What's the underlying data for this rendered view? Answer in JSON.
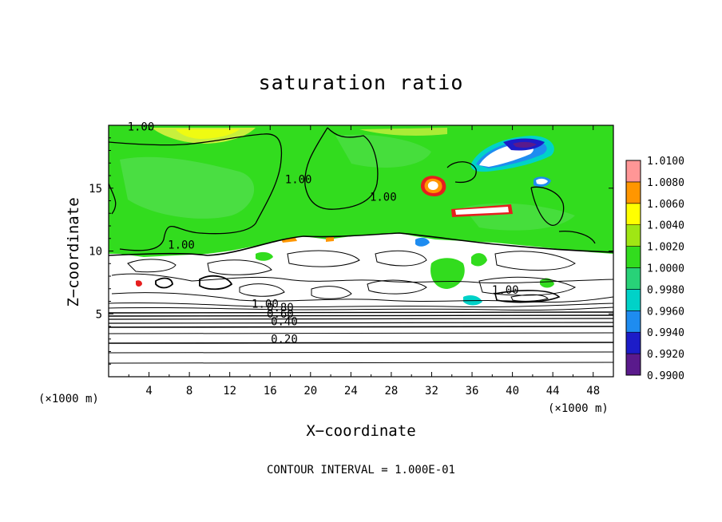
{
  "chart_data": {
    "type": "heatmap",
    "title": "saturation ratio",
    "xlabel": "X−coordinate",
    "ylabel": "Z−coordinate",
    "x_unit": "(×1000 m)",
    "y_unit": "(×1000 m)",
    "xlim": [
      0,
      50
    ],
    "ylim": [
      0,
      20
    ],
    "x_ticks": [
      4,
      8,
      12,
      16,
      20,
      24,
      28,
      32,
      36,
      40,
      44,
      48
    ],
    "y_ticks": [
      5,
      10,
      15
    ],
    "footer": "CONTOUR INTERVAL = 1.000E-01",
    "colorbar": {
      "levels": [
        "0.9900",
        "0.9920",
        "0.9940",
        "0.9960",
        "0.9980",
        "1.0000",
        "1.0020",
        "1.0040",
        "1.0060",
        "1.0080",
        "1.0100"
      ],
      "colors": [
        "#5a1a8c",
        "#1c1cc8",
        "#1e8cf0",
        "#00d2c8",
        "#28d278",
        "#32dc1e",
        "#a0e614",
        "#ffff00",
        "#ff9600",
        "#e61e1e",
        "#ff9696"
      ]
    },
    "contour_labels": [
      {
        "text": "1.00",
        "x": 3.2,
        "z": 19.6
      },
      {
        "text": "1.00",
        "x": 18.8,
        "z": 15.4
      },
      {
        "text": "1.00",
        "x": 27.2,
        "z": 14.0
      },
      {
        "text": "1.00",
        "x": 7.2,
        "z": 10.2
      },
      {
        "text": "1.00",
        "x": 39.3,
        "z": 6.6
      },
      {
        "text": "1.00",
        "x": 15.5,
        "z": 5.5
      },
      {
        "text": "0.80",
        "x": 17.0,
        "z": 5.2
      },
      {
        "text": "0.60",
        "x": 17.0,
        "z": 4.7
      },
      {
        "text": "0.40",
        "x": 17.4,
        "z": 4.1
      },
      {
        "text": "0.20",
        "x": 17.4,
        "z": 2.7
      }
    ],
    "grid": false
  }
}
